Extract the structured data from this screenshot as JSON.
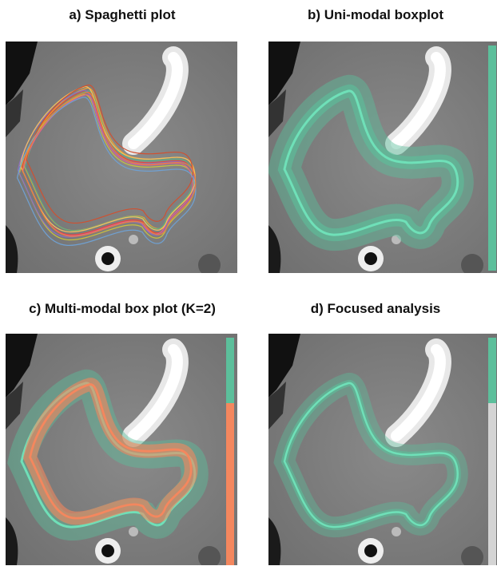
{
  "panels": [
    {
      "title": "a) Spaghetti plot"
    },
    {
      "title": "b) Uni-modal boxplot"
    },
    {
      "title": "c) Multi-modal box plot (K=2)"
    },
    {
      "title": "d) Focused analysis"
    }
  ]
}
